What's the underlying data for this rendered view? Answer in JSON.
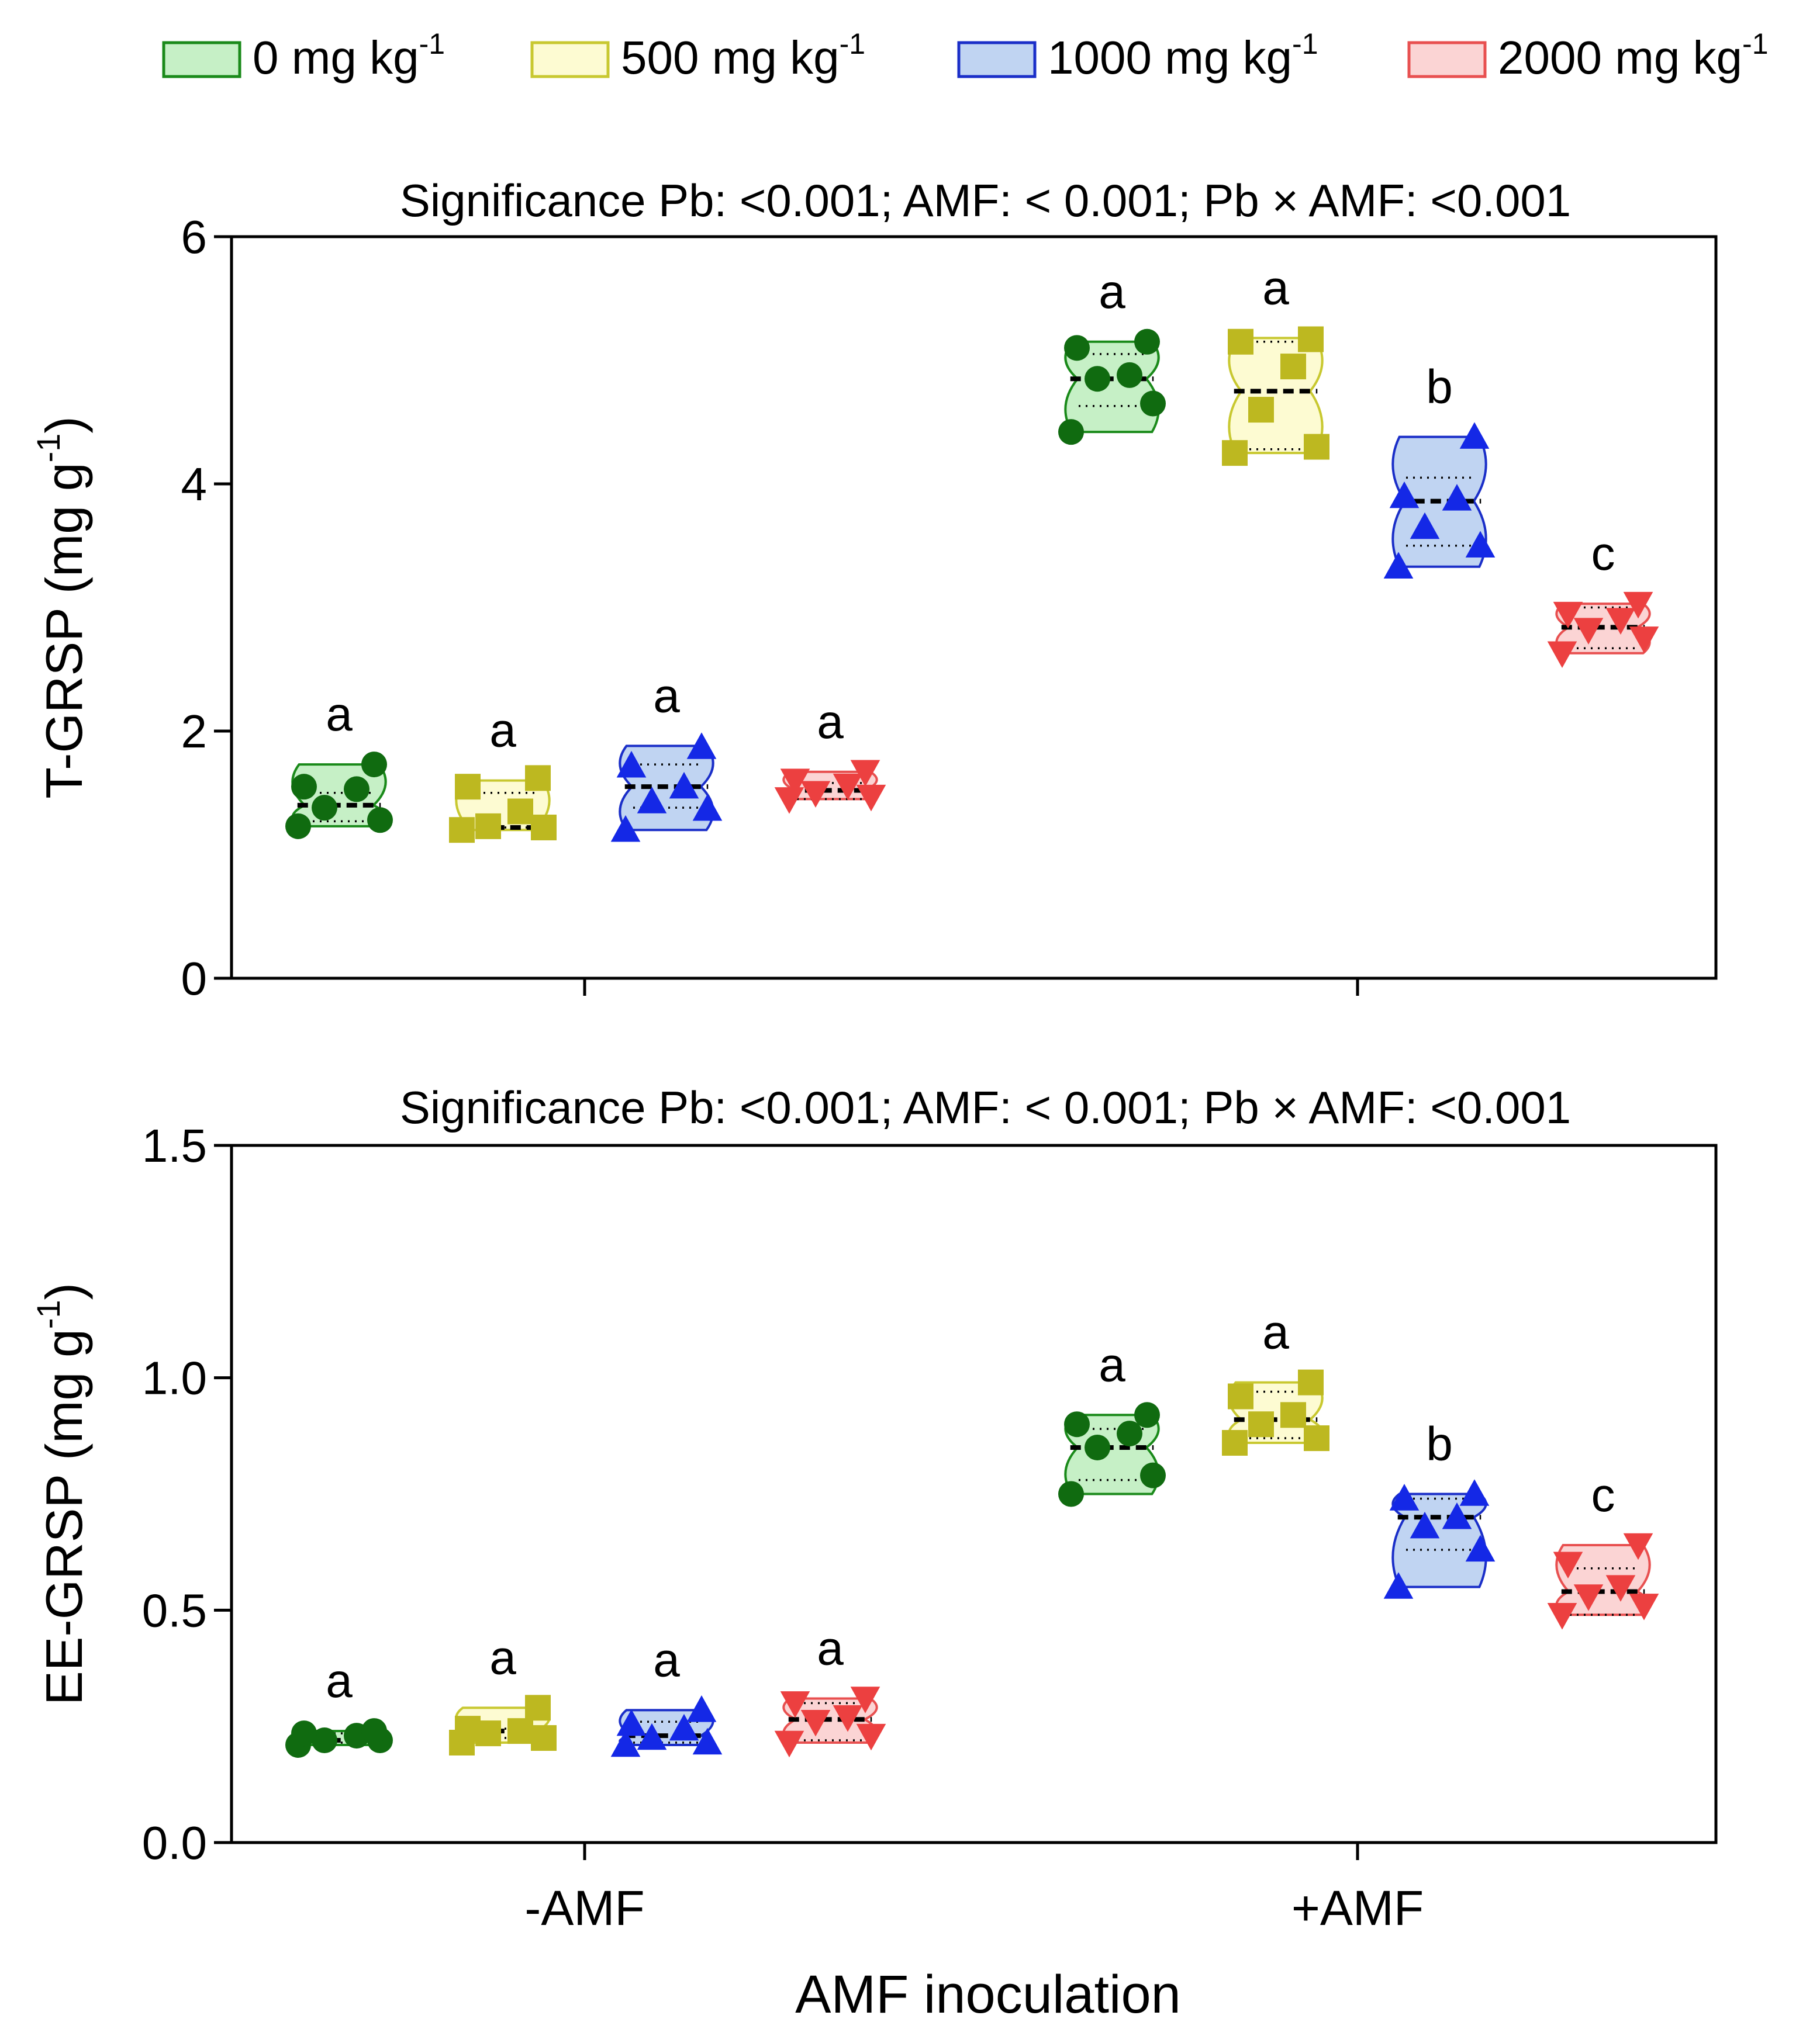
{
  "legend": [
    {
      "label": "0 mg kg",
      "sup": "-1",
      "stroke": "#1a8a1a",
      "fill": "#c6f0c6",
      "marker": "circle",
      "marker_color": "#106b10"
    },
    {
      "label": "500 mg kg",
      "sup": "-1",
      "stroke": "#c8c830",
      "fill": "#fdfbd2",
      "marker": "square",
      "marker_color": "#bdb820"
    },
    {
      "label": "1000 mg kg",
      "sup": "-1",
      "stroke": "#1a2ec8",
      "fill": "#c0d4f2",
      "marker": "triangle-up",
      "marker_color": "#1428e6"
    },
    {
      "label": "2000 mg kg",
      "sup": "-1",
      "stroke": "#e85050",
      "fill": "#fbd4d4",
      "marker": "triangle-down",
      "marker_color": "#ec4040"
    }
  ],
  "xaxis": {
    "label": "AMF inoculation",
    "groups": [
      "-AMF",
      "+AMF"
    ]
  },
  "chart_data": [
    {
      "type": "violin",
      "id": "tgrsp",
      "title": "Significance  Pb: <0.001;   AMF: < 0.001;   Pb × AMF: <0.001",
      "ylabel": "T-GRSP (mg g",
      "ylabel_sup": "-1",
      "ylabel_end": ")",
      "ylim": [
        0,
        6
      ],
      "yticks": [
        0,
        2,
        4,
        6
      ],
      "ytick_labels": [
        "0",
        "2",
        "4",
        "6"
      ],
      "groups": [
        {
          "name": "-AMF",
          "series": [
            {
              "dose": "0 mg kg-1",
              "median": 1.4,
              "q1": 1.27,
              "q3": 1.5,
              "min": 1.23,
              "max": 1.73,
              "letter": "a",
              "points": [
                1.23,
                1.28,
                1.38,
                1.53,
                1.55,
                1.73
              ]
            },
            {
              "dose": "500 mg kg-1",
              "median": 1.22,
              "q1": 1.22,
              "q3": 1.5,
              "min": 1.2,
              "max": 1.6,
              "letter": "a",
              "points": [
                1.2,
                1.22,
                1.23,
                1.35,
                1.55,
                1.62
              ]
            },
            {
              "dose": "1000 mg kg-1",
              "median": 1.55,
              "q1": 1.38,
              "q3": 1.73,
              "min": 1.2,
              "max": 1.88,
              "letter": "a",
              "points": [
                1.2,
                1.37,
                1.43,
                1.55,
                1.72,
                1.87
              ]
            },
            {
              "dose": "2000 mg kg-1",
              "median": 1.52,
              "q1": 1.45,
              "q3": 1.58,
              "min": 1.45,
              "max": 1.67,
              "letter": "a",
              "points": [
                1.45,
                1.47,
                1.5,
                1.56,
                1.6,
                1.67
              ]
            }
          ]
        },
        {
          "name": "+AMF",
          "series": [
            {
              "dose": "0 mg kg-1",
              "median": 4.85,
              "q1": 4.63,
              "q3": 5.05,
              "min": 4.42,
              "max": 5.15,
              "letter": "a",
              "points": [
                4.42,
                4.65,
                4.85,
                4.88,
                5.1,
                5.15
              ]
            },
            {
              "dose": "500 mg kg-1",
              "median": 4.75,
              "q1": 4.28,
              "q3": 5.15,
              "min": 4.25,
              "max": 5.18,
              "letter": "a",
              "points": [
                4.25,
                4.3,
                4.6,
                4.95,
                5.15,
                5.17
              ]
            },
            {
              "dose": "1000 mg kg-1",
              "median": 3.86,
              "q1": 3.5,
              "q3": 4.05,
              "min": 3.33,
              "max": 4.38,
              "letter": "b",
              "points": [
                3.33,
                3.5,
                3.65,
                3.88,
                3.9,
                4.38
              ]
            },
            {
              "dose": "2000 mg kg-1",
              "median": 2.84,
              "q1": 2.67,
              "q3": 3.0,
              "min": 2.63,
              "max": 3.03,
              "letter": "c",
              "points": [
                2.63,
                2.75,
                2.82,
                2.9,
                2.95,
                3.03
              ]
            }
          ]
        }
      ]
    },
    {
      "type": "violin",
      "id": "eegrsp",
      "title": "Significance  Pb: <0.001;   AMF: < 0.001;   Pb × AMF: <0.001",
      "ylabel": "EE-GRSP (mg g",
      "ylabel_sup": "-1",
      "ylabel_end": ")",
      "ylim": [
        0,
        1.5
      ],
      "yticks": [
        0,
        0.5,
        1.0,
        1.5
      ],
      "ytick_labels": [
        "0.0",
        "0.5",
        "1.0",
        "1.5"
      ],
      "groups": [
        {
          "name": "-AMF",
          "series": [
            {
              "dose": "0 mg kg-1",
              "median": 0.22,
              "q1": 0.215,
              "q3": 0.235,
              "min": 0.21,
              "max": 0.24,
              "letter": "a",
              "points": [
                0.21,
                0.22,
                0.22,
                0.23,
                0.235,
                0.24
              ]
            },
            {
              "dose": "500 mg kg-1",
              "median": 0.24,
              "q1": 0.225,
              "q3": 0.245,
              "min": 0.215,
              "max": 0.29,
              "letter": "a",
              "points": [
                0.215,
                0.225,
                0.235,
                0.24,
                0.245,
                0.29
              ]
            },
            {
              "dose": "1000 mg kg-1",
              "median": 0.23,
              "q1": 0.215,
              "q3": 0.26,
              "min": 0.21,
              "max": 0.285,
              "letter": "a",
              "points": [
                0.21,
                0.215,
                0.225,
                0.245,
                0.255,
                0.285
              ]
            },
            {
              "dose": "2000 mg kg-1",
              "median": 0.265,
              "q1": 0.22,
              "q3": 0.3,
              "min": 0.215,
              "max": 0.31,
              "letter": "a",
              "points": [
                0.215,
                0.23,
                0.26,
                0.27,
                0.3,
                0.31
              ]
            }
          ]
        },
        {
          "name": "+AMF",
          "series": [
            {
              "dose": "0 mg kg-1",
              "median": 0.85,
              "q1": 0.78,
              "q3": 0.89,
              "min": 0.75,
              "max": 0.92,
              "letter": "a",
              "points": [
                0.75,
                0.79,
                0.85,
                0.88,
                0.9,
                0.92
              ]
            },
            {
              "dose": "500 mg kg-1",
              "median": 0.91,
              "q1": 0.87,
              "q3": 0.97,
              "min": 0.86,
              "max": 0.99,
              "letter": "a",
              "points": [
                0.86,
                0.87,
                0.9,
                0.92,
                0.96,
                0.99
              ]
            },
            {
              "dose": "1000 mg kg-1",
              "median": 0.7,
              "q1": 0.63,
              "q3": 0.74,
              "min": 0.55,
              "max": 0.75,
              "letter": "b",
              "points": [
                0.55,
                0.63,
                0.68,
                0.7,
                0.74,
                0.75
              ]
            },
            {
              "dose": "2000 mg kg-1",
              "median": 0.54,
              "q1": 0.49,
              "q3": 0.59,
              "min": 0.49,
              "max": 0.64,
              "letter": "c",
              "points": [
                0.49,
                0.51,
                0.53,
                0.55,
                0.6,
                0.64
              ]
            }
          ]
        }
      ]
    }
  ]
}
